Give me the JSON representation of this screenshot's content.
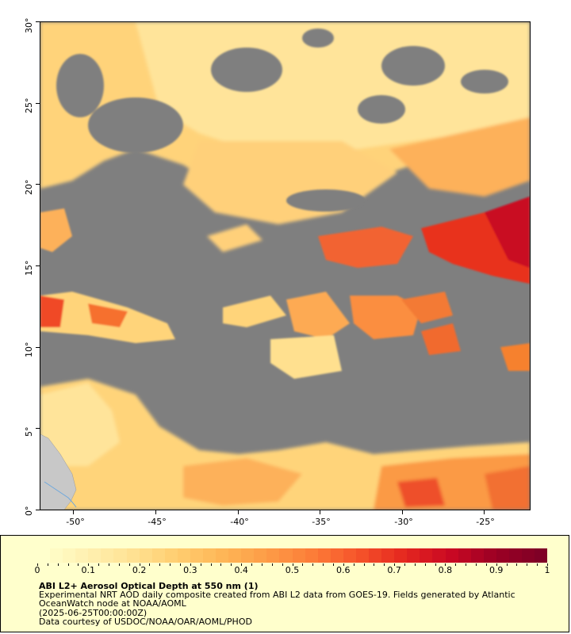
{
  "map": {
    "lat_labels": [
      "30°",
      "25°",
      "20°",
      "15°",
      "10°",
      "5°",
      "0°"
    ],
    "lon_labels": [
      "-50°",
      "-45°",
      "-40°",
      "-35°",
      "-30°",
      "-25°"
    ],
    "extent": {
      "lon_min": -52.2,
      "lon_max": -22.2,
      "lat_min": 0,
      "lat_max": 30
    },
    "colors": {
      "no_data": "#7f7f7f",
      "land": "#c8c8c8",
      "river": "#6fa8dc"
    }
  },
  "legend": {
    "tick_labels": [
      "0",
      "0.1",
      "0.2",
      "0.3",
      "0.4",
      "0.5",
      "0.6",
      "0.7",
      "0.8",
      "0.9",
      "1"
    ],
    "range": [
      0,
      1
    ],
    "colormap": [
      "#ffffcc",
      "#fff0b0",
      "#ffe191",
      "#ffcc6e",
      "#feb556",
      "#fd9b46",
      "#fc7a37",
      "#f5522a",
      "#e4261f",
      "#c90823",
      "#9b0024",
      "#7f0026"
    ],
    "title": "ABI L2+ Aerosol Optical Depth at 550 nm (1)",
    "line1": "Experimental NRT AOD daily composite created from ABI L2 data from GOES-19. Fields generated by Atlantic",
    "line2": "OceanWatch node at NOAA/AOML",
    "line3": "(2025-06-25T00:00:00Z)",
    "line4": "Data courtesy of USDOC/NOAA/OAR/AOML/PHOD",
    "background": "#ffffcc"
  }
}
